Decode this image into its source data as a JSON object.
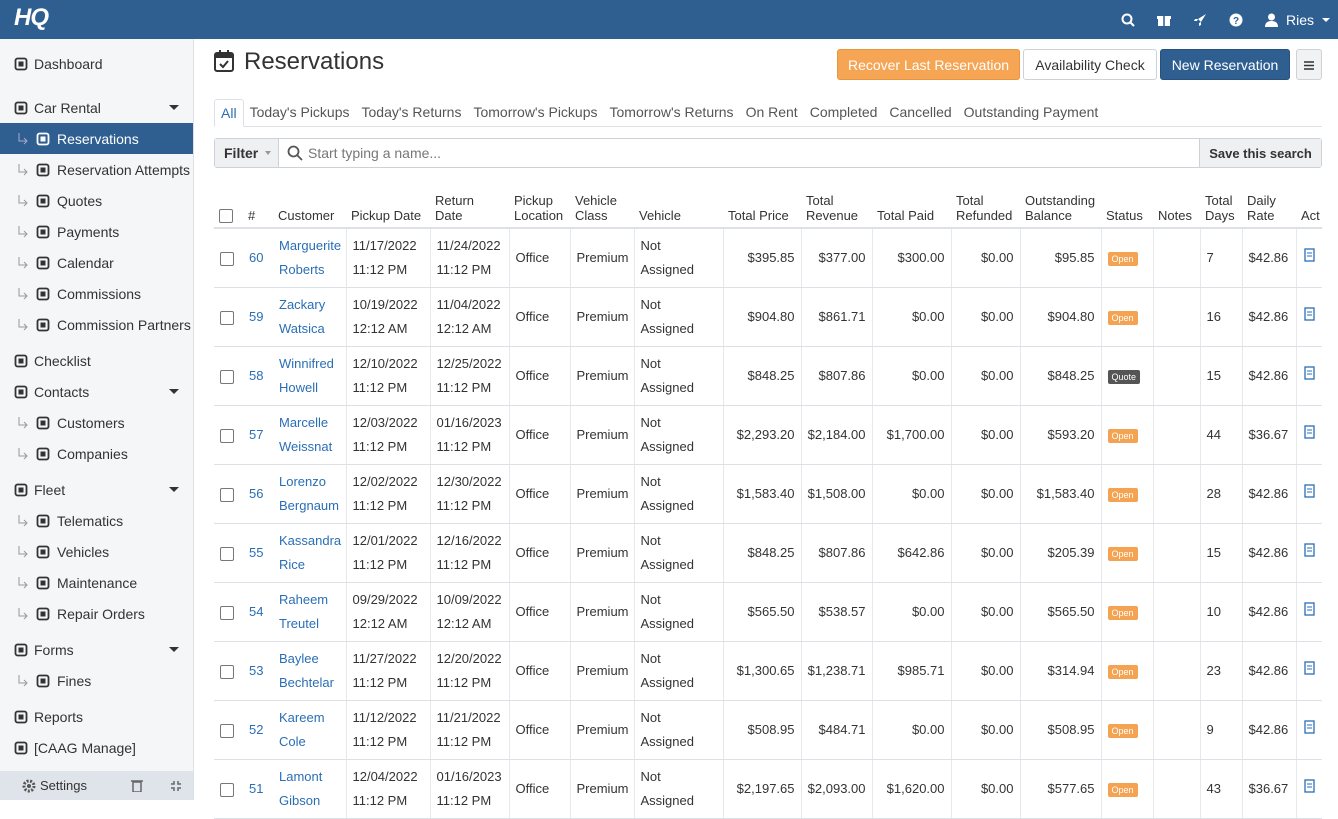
{
  "header": {
    "logo": "HQ",
    "user": "Ries"
  },
  "sidebar": {
    "groups": [
      [
        {
          "label": "Dashboard"
        }
      ],
      [
        {
          "label": "Car Rental",
          "expandable": true,
          "children": [
            {
              "label": "Reservations",
              "active": true
            },
            {
              "label": "Reservation Attempts"
            },
            {
              "label": "Quotes"
            },
            {
              "label": "Payments"
            },
            {
              "label": "Calendar"
            },
            {
              "label": "Commissions"
            },
            {
              "label": "Commission Partners"
            }
          ]
        }
      ],
      [
        {
          "label": "Checklist"
        },
        {
          "label": "Contacts",
          "expandable": true,
          "children": [
            {
              "label": "Customers"
            },
            {
              "label": "Companies"
            }
          ]
        }
      ],
      [
        {
          "label": "Fleet",
          "expandable": true,
          "children": [
            {
              "label": "Telematics"
            },
            {
              "label": "Vehicles"
            },
            {
              "label": "Maintenance"
            },
            {
              "label": "Repair Orders"
            }
          ]
        }
      ],
      [
        {
          "label": "Forms",
          "expandable": true,
          "children": [
            {
              "label": "Fines"
            }
          ]
        }
      ],
      [
        {
          "label": "Reports"
        },
        {
          "label": "[CAAG Manage]"
        }
      ]
    ],
    "footer": "Settings"
  },
  "page": {
    "title": "Reservations",
    "buttons": [
      "Recover Last Reservation",
      "Availability Check",
      "New Reservation"
    ],
    "tabs": [
      "All",
      "Today's Pickups",
      "Today's Returns",
      "Tomorrow's Pickups",
      "Tomorrow's Returns",
      "On Rent",
      "Completed",
      "Cancelled",
      "Outstanding Payment"
    ],
    "filter": {
      "label": "Filter",
      "placeholder": "Start typing a name...",
      "save": "Save this search"
    }
  },
  "table": {
    "columns": [
      "#",
      "Customer",
      "Pickup Date",
      "Return Date",
      "Pickup Location",
      "Vehicle Class",
      "Vehicle",
      "Total Price",
      "Total Revenue",
      "Total Paid",
      "Total Refunded",
      "Outstanding Balance",
      "Status",
      "Notes",
      "Total Days",
      "Daily Rate",
      "Act"
    ],
    "rows": [
      {
        "id": 60,
        "customer": "Marguerite Roberts",
        "pickup": "11/17/2022 11:12 PM",
        "return": "11/24/2022 11:12 PM",
        "location": "Office",
        "vehicle_class": "Premium",
        "vehicle": "Not Assigned",
        "total_price": "$395.85",
        "total_revenue": "$377.00",
        "total_paid": "$300.00",
        "total_refunded": "$0.00",
        "outstanding_balance": "$95.85",
        "status": "Open",
        "days": 7,
        "daily_rate": "$42.86"
      },
      {
        "id": 59,
        "customer": "Zackary Watsica",
        "pickup": "10/19/2022 12:12 AM",
        "return": "11/04/2022 12:12 AM",
        "location": "Office",
        "vehicle_class": "Premium",
        "vehicle": "Not Assigned",
        "total_price": "$904.80",
        "total_revenue": "$861.71",
        "total_paid": "$0.00",
        "total_refunded": "$0.00",
        "outstanding_balance": "$904.80",
        "status": "Open",
        "days": 16,
        "daily_rate": "$42.86"
      },
      {
        "id": 58,
        "customer": "Winnifred Howell",
        "pickup": "12/10/2022 11:12 PM",
        "return": "12/25/2022 11:12 PM",
        "location": "Office",
        "vehicle_class": "Premium",
        "vehicle": "Not Assigned",
        "total_price": "$848.25",
        "total_revenue": "$807.86",
        "total_paid": "$0.00",
        "total_refunded": "$0.00",
        "outstanding_balance": "$848.25",
        "status": "Quote",
        "days": 15,
        "daily_rate": "$42.86"
      },
      {
        "id": 57,
        "customer": "Marcelle Weissnat",
        "pickup": "12/03/2022 11:12 PM",
        "return": "01/16/2023 11:12 PM",
        "location": "Office",
        "vehicle_class": "Premium",
        "vehicle": "Not Assigned",
        "total_price": "$2,293.20",
        "total_revenue": "$2,184.00",
        "total_paid": "$1,700.00",
        "total_refunded": "$0.00",
        "outstanding_balance": "$593.20",
        "status": "Open",
        "days": 44,
        "daily_rate": "$36.67"
      },
      {
        "id": 56,
        "customer": "Lorenzo Bergnaum",
        "pickup": "12/02/2022 11:12 PM",
        "return": "12/30/2022 11:12 PM",
        "location": "Office",
        "vehicle_class": "Premium",
        "vehicle": "Not Assigned",
        "total_price": "$1,583.40",
        "total_revenue": "$1,508.00",
        "total_paid": "$0.00",
        "total_refunded": "$0.00",
        "outstanding_balance": "$1,583.40",
        "status": "Open",
        "days": 28,
        "daily_rate": "$42.86"
      },
      {
        "id": 55,
        "customer": "Kassandra Rice",
        "pickup": "12/01/2022 11:12 PM",
        "return": "12/16/2022 11:12 PM",
        "location": "Office",
        "vehicle_class": "Premium",
        "vehicle": "Not Assigned",
        "total_price": "$848.25",
        "total_revenue": "$807.86",
        "total_paid": "$642.86",
        "total_refunded": "$0.00",
        "outstanding_balance": "$205.39",
        "status": "Open",
        "days": 15,
        "daily_rate": "$42.86"
      },
      {
        "id": 54,
        "customer": "Raheem Treutel",
        "pickup": "09/29/2022 12:12 AM",
        "return": "10/09/2022 12:12 AM",
        "location": "Office",
        "vehicle_class": "Premium",
        "vehicle": "Not Assigned",
        "total_price": "$565.50",
        "total_revenue": "$538.57",
        "total_paid": "$0.00",
        "total_refunded": "$0.00",
        "outstanding_balance": "$565.50",
        "status": "Open",
        "days": 10,
        "daily_rate": "$42.86"
      },
      {
        "id": 53,
        "customer": "Baylee Bechtelar",
        "pickup": "11/27/2022 11:12 PM",
        "return": "12/20/2022 11:12 PM",
        "location": "Office",
        "vehicle_class": "Premium",
        "vehicle": "Not Assigned",
        "total_price": "$1,300.65",
        "total_revenue": "$1,238.71",
        "total_paid": "$985.71",
        "total_refunded": "$0.00",
        "outstanding_balance": "$314.94",
        "status": "Open",
        "days": 23,
        "daily_rate": "$42.86"
      },
      {
        "id": 52,
        "customer": "Kareem Cole",
        "pickup": "11/12/2022 11:12 PM",
        "return": "11/21/2022 11:12 PM",
        "location": "Office",
        "vehicle_class": "Premium",
        "vehicle": "Not Assigned",
        "total_price": "$508.95",
        "total_revenue": "$484.71",
        "total_paid": "$0.00",
        "total_refunded": "$0.00",
        "outstanding_balance": "$508.95",
        "status": "Open",
        "days": 9,
        "daily_rate": "$42.86"
      },
      {
        "id": 51,
        "customer": "Lamont Gibson",
        "pickup": "12/04/2022 11:12 PM",
        "return": "01/16/2023 11:12 PM",
        "location": "Office",
        "vehicle_class": "Premium",
        "vehicle": "Not Assigned",
        "total_price": "$2,197.65",
        "total_revenue": "$2,093.00",
        "total_paid": "$1,620.00",
        "total_refunded": "$0.00",
        "outstanding_balance": "$577.65",
        "status": "Open",
        "days": 43,
        "daily_rate": "$36.67"
      }
    ]
  }
}
